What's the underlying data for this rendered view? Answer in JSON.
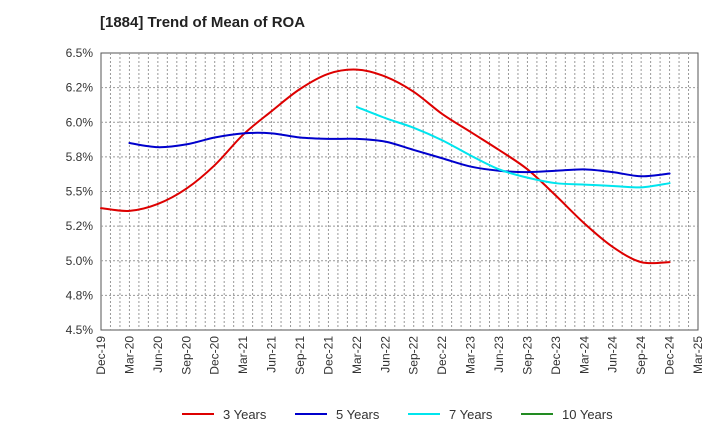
{
  "chart_data": {
    "type": "line",
    "title": "[1884]  Trend of Mean of ROA",
    "xlabel": "",
    "ylabel": "",
    "ylim": [
      4.5,
      6.5
    ],
    "grid": true,
    "legend_position": "bottom",
    "x": [
      "Dec-19",
      "Mar-20",
      "Jun-20",
      "Sep-20",
      "Dec-20",
      "Mar-21",
      "Jun-21",
      "Sep-21",
      "Dec-21",
      "Mar-22",
      "Jun-22",
      "Sep-22",
      "Dec-22",
      "Mar-23",
      "Jun-23",
      "Sep-23",
      "Dec-23",
      "Mar-24",
      "Jun-24",
      "Sep-24",
      "Dec-24",
      "Mar-25"
    ],
    "y_ticks": [
      {
        "value": 4.5,
        "label": "4.5%"
      },
      {
        "value": 4.75,
        "label": "4.8%"
      },
      {
        "value": 5.0,
        "label": "5.0%"
      },
      {
        "value": 5.25,
        "label": "5.2%"
      },
      {
        "value": 5.5,
        "label": "5.5%"
      },
      {
        "value": 5.75,
        "label": "5.8%"
      },
      {
        "value": 6.0,
        "label": "6.0%"
      },
      {
        "value": 6.25,
        "label": "6.2%"
      },
      {
        "value": 6.5,
        "label": "6.5%"
      }
    ],
    "series": [
      {
        "name": "3 Years",
        "color": "#dd0000",
        "values": [
          5.38,
          5.36,
          5.41,
          5.52,
          5.69,
          5.91,
          6.08,
          6.24,
          6.35,
          6.38,
          6.33,
          6.22,
          6.06,
          5.93,
          5.8,
          5.66,
          5.47,
          5.27,
          5.1,
          4.99,
          4.99,
          null
        ]
      },
      {
        "name": "5 Years",
        "color": "#0000cc",
        "values": [
          null,
          5.85,
          5.82,
          5.84,
          5.89,
          5.92,
          5.92,
          5.89,
          5.88,
          5.88,
          5.86,
          5.8,
          5.74,
          5.68,
          5.65,
          5.64,
          5.65,
          5.66,
          5.64,
          5.61,
          5.63,
          null
        ]
      },
      {
        "name": "7 Years",
        "color": "#00e5ee",
        "values": [
          null,
          null,
          null,
          null,
          null,
          null,
          null,
          null,
          null,
          6.11,
          6.03,
          5.96,
          5.87,
          5.76,
          5.66,
          5.6,
          5.56,
          5.55,
          5.54,
          5.53,
          5.56,
          null
        ]
      },
      {
        "name": "10 Years",
        "color": "#228b22",
        "values": [
          null,
          null,
          null,
          null,
          null,
          null,
          null,
          null,
          null,
          null,
          null,
          null,
          null,
          null,
          null,
          null,
          null,
          null,
          null,
          null,
          null,
          null
        ]
      }
    ]
  }
}
